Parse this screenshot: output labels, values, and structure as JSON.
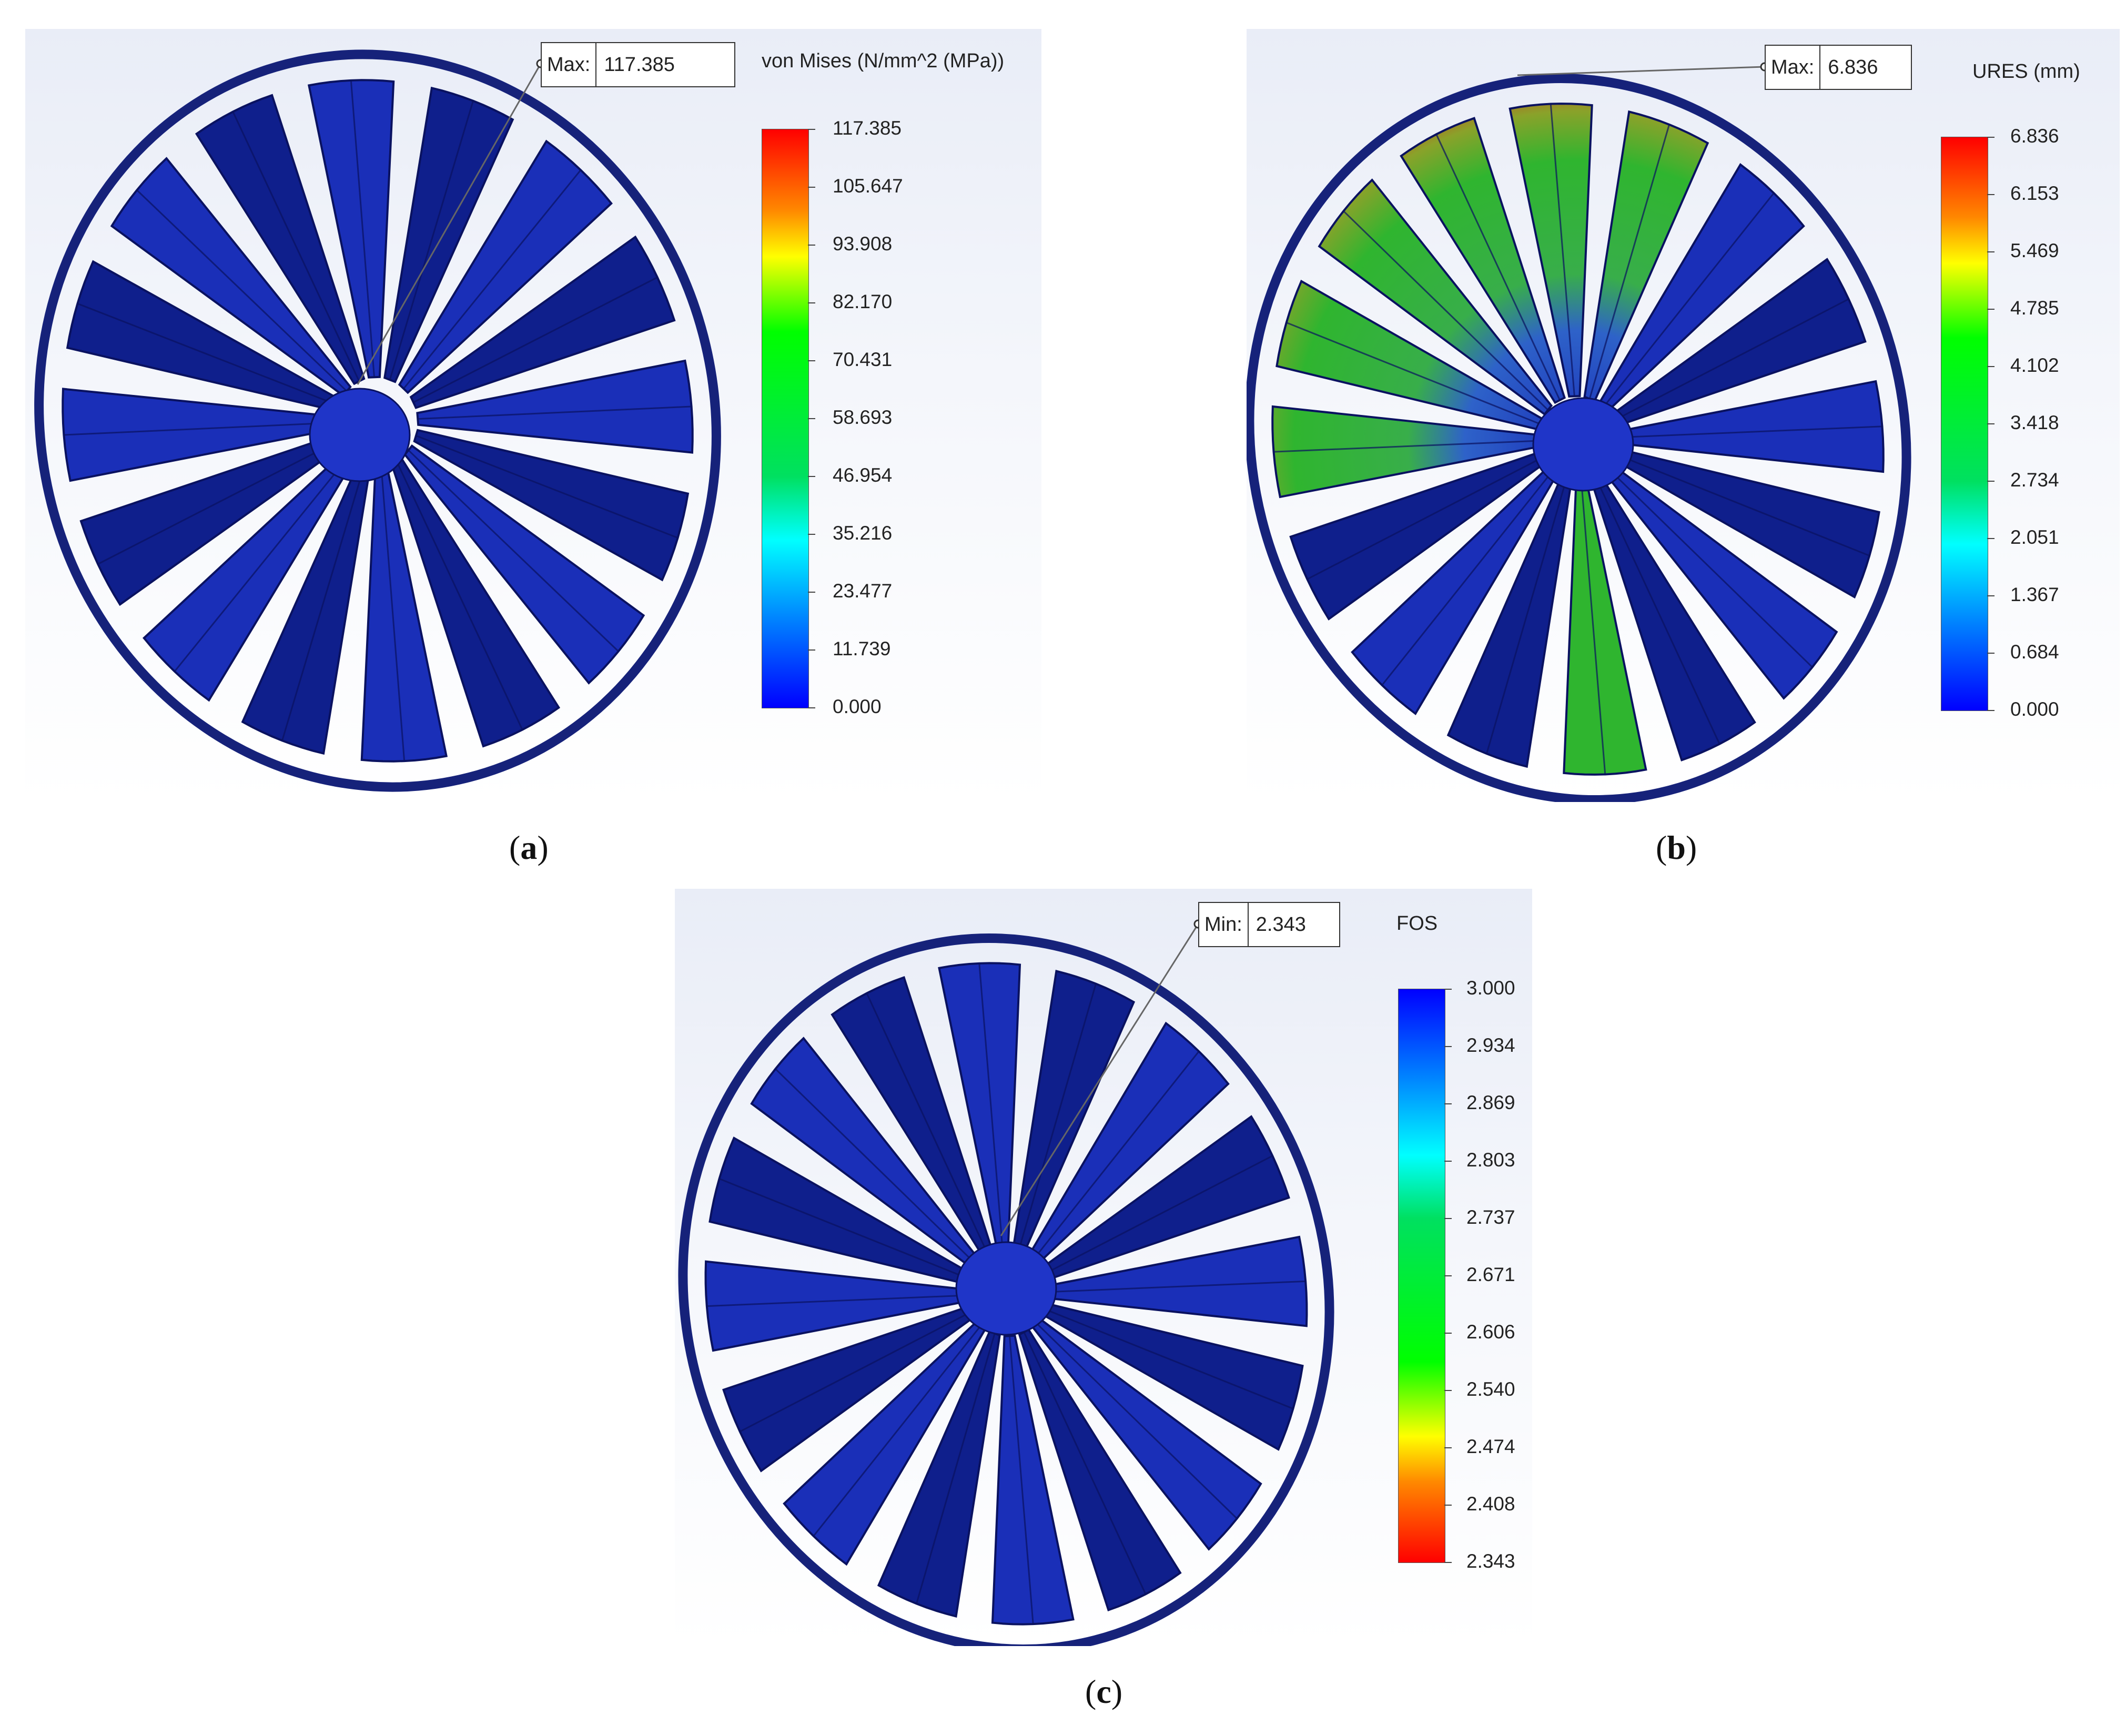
{
  "panels": [
    {
      "id": "a",
      "caption_open": "(",
      "caption_letter": "a",
      "caption_close": ")",
      "legend_title": "von Mises (N/mm^2 (MPa))",
      "probe_label": "Max:",
      "probe_value": "117.385",
      "ticks": [
        "117.385",
        "105.647",
        "93.908",
        "82.170",
        "70.431",
        "58.693",
        "46.954",
        "35.216",
        "23.477",
        "11.739",
        "0.000"
      ],
      "colormap": "red-top",
      "blade_contour": "uniform-blue"
    },
    {
      "id": "b",
      "caption_open": "(",
      "caption_letter": "b",
      "caption_close": ")",
      "legend_title": "URES (mm)",
      "probe_label": "Max:",
      "probe_value": "6.836",
      "ticks": [
        "6.836",
        "6.153",
        "5.469",
        "4.785",
        "4.102",
        "3.418",
        "2.734",
        "2.051",
        "1.367",
        "0.684",
        "0.000"
      ],
      "colormap": "red-top",
      "blade_contour": "green-red-on-upper-left-blades"
    },
    {
      "id": "c",
      "caption_open": "(",
      "caption_letter": "c",
      "caption_close": ")",
      "legend_title": "FOS",
      "probe_label": "Min:",
      "probe_value": "2.343",
      "ticks": [
        "3.000",
        "2.934",
        "2.869",
        "2.803",
        "2.737",
        "2.671",
        "2.606",
        "2.540",
        "2.474",
        "2.408",
        "2.343"
      ],
      "colormap": "blue-top",
      "blade_contour": "uniform-blue"
    }
  ],
  "colors": {
    "blade_blue": "#1a2fb8",
    "blade_dark": "#0f1f8c",
    "rim": "#16227a",
    "green": "#2fb52f",
    "red": "#e01a1a"
  }
}
